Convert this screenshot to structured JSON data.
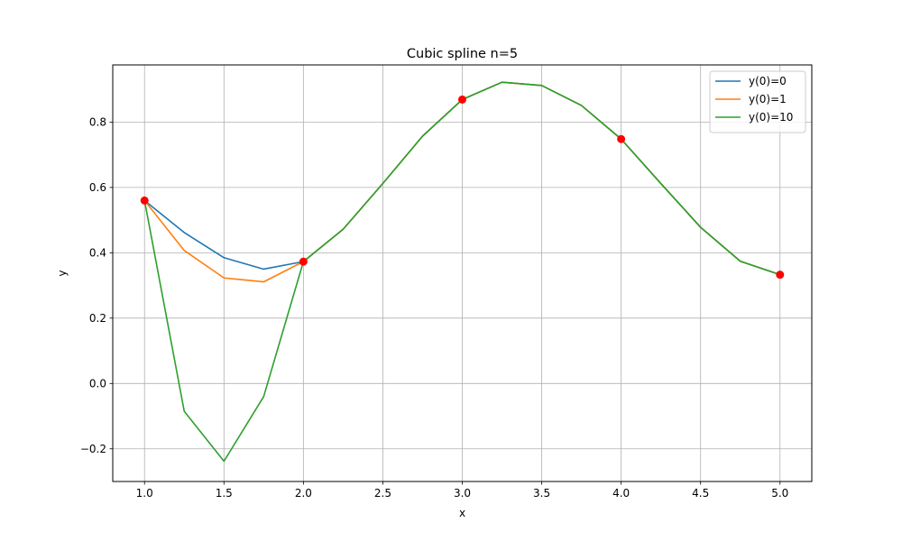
{
  "chart_data": {
    "type": "line",
    "title": "Cubic spline n=5",
    "xlabel": "x",
    "ylabel": "y",
    "xlim": [
      0.8,
      5.2
    ],
    "ylim": [
      -0.3,
      0.975
    ],
    "xticks": [
      1.0,
      1.5,
      2.0,
      2.5,
      3.0,
      3.5,
      4.0,
      4.5,
      5.0
    ],
    "xtick_labels": [
      "1.0",
      "1.5",
      "2.0",
      "2.5",
      "3.0",
      "3.5",
      "4.0",
      "4.5",
      "5.0"
    ],
    "yticks": [
      -0.2,
      0.0,
      0.2,
      0.4,
      0.6,
      0.8
    ],
    "ytick_labels": [
      "−0.2",
      "0.0",
      "0.2",
      "0.4",
      "0.6",
      "0.8"
    ],
    "grid": true,
    "legend_position": "top-right",
    "x": [
      1.0,
      1.25,
      1.5,
      1.75,
      2.0,
      2.25,
      2.5,
      2.75,
      3.0,
      3.25,
      3.5,
      3.75,
      4.0,
      4.25,
      4.5,
      4.75,
      5.0
    ],
    "series": [
      {
        "name": "y(0)=0",
        "color": "#1f77b4",
        "values": [
          0.56,
          0.462,
          0.385,
          0.35,
          0.373,
          0.472,
          0.612,
          0.757,
          0.869,
          0.922,
          0.912,
          0.851,
          0.748,
          0.612,
          0.478,
          0.374,
          0.333
        ]
      },
      {
        "name": "y(0)=1",
        "color": "#ff7f0e",
        "values": [
          0.56,
          0.407,
          0.323,
          0.311,
          0.373,
          0.472,
          0.612,
          0.757,
          0.869,
          0.922,
          0.912,
          0.851,
          0.748,
          0.612,
          0.478,
          0.374,
          0.333
        ]
      },
      {
        "name": "y(0)=10",
        "color": "#2ca02c",
        "values": [
          0.56,
          -0.085,
          -0.238,
          -0.04,
          0.373,
          0.472,
          0.612,
          0.757,
          0.869,
          0.922,
          0.912,
          0.851,
          0.748,
          0.612,
          0.478,
          0.374,
          0.333
        ]
      }
    ],
    "knots": {
      "color": "#ff0000",
      "x": [
        1.0,
        2.0,
        3.0,
        4.0,
        5.0
      ],
      "y": [
        0.56,
        0.373,
        0.869,
        0.748,
        0.333
      ]
    }
  }
}
